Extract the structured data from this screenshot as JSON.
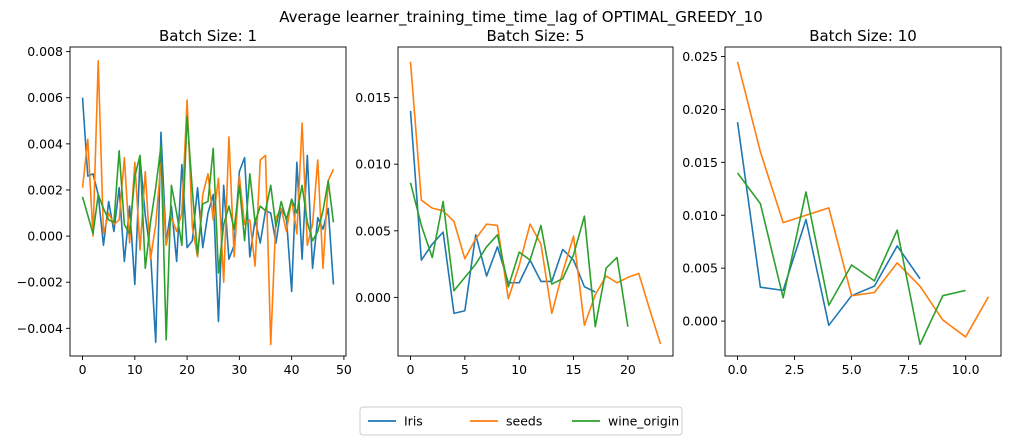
{
  "title": "Average learner_training_time_time_lag of OPTIMAL_GREEDY_10",
  "legend": {
    "placement": "bottom-center",
    "entries": [
      "Iris",
      "seeds",
      "wine_origin"
    ]
  },
  "colors": {
    "Iris": "#1f77b4",
    "seeds": "#ff7f0e",
    "wine_origin": "#2ca02c"
  },
  "chart_data": [
    {
      "type": "line",
      "title": "Batch Size: 1",
      "xlabel": "",
      "ylabel": "",
      "xlim": [
        -2.4,
        50.4
      ],
      "ylim": [
        -0.0052,
        0.0082
      ],
      "xticks": [
        0,
        10,
        20,
        30,
        40,
        50
      ],
      "xtick_labels": [
        "0",
        "10",
        "20",
        "30",
        "40",
        "50"
      ],
      "yticks": [
        -0.004,
        -0.002,
        0.0,
        0.002,
        0.004,
        0.006,
        0.008
      ],
      "ytick_labels": [
        "−0.004",
        "−0.002",
        "0.000",
        "0.002",
        "0.004",
        "0.006",
        "0.008"
      ],
      "series": [
        {
          "name": "Iris",
          "x": [
            0,
            1,
            2,
            3,
            4,
            5,
            6,
            7,
            8,
            9,
            10,
            11,
            12,
            13,
            14,
            15,
            16,
            17,
            18,
            19,
            20,
            21,
            22,
            23,
            24,
            25,
            26,
            27,
            28,
            29,
            30,
            31,
            32,
            33,
            34,
            35,
            36,
            37,
            38,
            39,
            40,
            41,
            42,
            43,
            44,
            45,
            46,
            47,
            48
          ],
          "values": [
            0.006,
            0.0026,
            0.0027,
            0.0018,
            -0.0004,
            0.0015,
            0.0002,
            0.0021,
            -0.0011,
            0.0013,
            -0.0021,
            0.0034,
            0.0009,
            -0.0007,
            -0.0046,
            0.0045,
            -0.0003,
            0.0013,
            -0.0011,
            0.0031,
            -0.0005,
            -0.0002,
            0.0021,
            -0.0005,
            0.001,
            0.0018,
            -0.0037,
            0.0022,
            -0.001,
            -0.0004,
            0.0028,
            0.0034,
            -0.0009,
            0.0007,
            -0.0003,
            0.0011,
            0.001,
            -0.0003,
            0.0012,
            0.0008,
            -0.0024,
            0.0032,
            -0.001,
            0.0035,
            -0.0014,
            0.0008,
            0.0003,
            0.0012,
            -0.0021
          ]
        },
        {
          "name": "seeds",
          "x": [
            0,
            1,
            2,
            3,
            4,
            5,
            6,
            7,
            8,
            9,
            10,
            11,
            12,
            13,
            14,
            15,
            16,
            17,
            18,
            19,
            20,
            21,
            22,
            23,
            24,
            25,
            26,
            27,
            28,
            29,
            30,
            31,
            32,
            33,
            34,
            35,
            36,
            37,
            38,
            39,
            40,
            41,
            42,
            43,
            44,
            45,
            46,
            47,
            48
          ],
          "values": [
            0.0021,
            0.0042,
            0.0,
            0.0076,
            0.0001,
            0.001,
            0.0005,
            0.0007,
            0.0034,
            -0.0003,
            0.0032,
            -0.0006,
            0.0028,
            -0.001,
            0.0005,
            0.0032,
            -0.0004,
            0.0008,
            0.0002,
            0.001,
            0.0059,
            0.0004,
            -0.0009,
            0.0018,
            0.0027,
            0.0007,
            0.0025,
            -0.002,
            0.0043,
            -0.0009,
            0.0026,
            0.0005,
            0.0007,
            -0.0013,
            0.0033,
            0.0035,
            -0.0047,
            0.0008,
            0.0012,
            0.0002,
            0.0016,
            0.0001,
            0.0049,
            -0.0004,
            0.0005,
            0.0033,
            -0.0014,
            0.0024,
            0.0029
          ]
        },
        {
          "name": "wine_origin",
          "x": [
            0,
            1,
            2,
            3,
            4,
            5,
            6,
            7,
            8,
            9,
            10,
            11,
            12,
            13,
            14,
            15,
            16,
            17,
            18,
            19,
            20,
            21,
            22,
            23,
            24,
            25,
            26,
            27,
            28,
            29,
            30,
            31,
            32,
            33,
            34,
            35,
            36,
            37,
            38,
            39,
            40,
            41,
            42,
            43,
            44,
            45,
            46,
            47,
            48
          ],
          "values": [
            0.0017,
            0.0009,
            0.0001,
            0.0018,
            0.0012,
            0.0007,
            0.0006,
            0.0037,
            0.0005,
            0.0001,
            0.0026,
            0.0035,
            -0.0014,
            0.0006,
            0.0021,
            0.0039,
            -0.0045,
            0.0022,
            0.001,
            -0.0004,
            0.0052,
            0.002,
            -0.0008,
            0.0014,
            0.0015,
            0.0038,
            -0.0016,
            0.0005,
            0.0013,
            0.0003,
            0.0022,
            -0.0002,
            0.0027,
            0.0006,
            0.0013,
            0.0011,
            0.0022,
            0.0004,
            0.0015,
            0.0007,
            0.0016,
            0.001,
            0.0022,
            0.0006,
            -0.0002,
            0.0002,
            0.0011,
            0.0024,
            0.0006
          ]
        }
      ]
    },
    {
      "type": "line",
      "title": "Batch Size: 5",
      "xlabel": "",
      "ylabel": "",
      "xlim": [
        -1.15,
        24.15
      ],
      "ylim": [
        -0.0044,
        0.0188
      ],
      "xticks": [
        0,
        5,
        10,
        15,
        20
      ],
      "xtick_labels": [
        "0",
        "5",
        "10",
        "15",
        "20"
      ],
      "yticks": [
        0.0,
        0.005,
        0.01,
        0.015
      ],
      "ytick_labels": [
        "0.000",
        "0.005",
        "0.010",
        "0.015"
      ],
      "series": [
        {
          "name": "Iris",
          "x": [
            0,
            1,
            2,
            3,
            4,
            5,
            6,
            7,
            8,
            9,
            10,
            11,
            12,
            13,
            14,
            15,
            16,
            17
          ],
          "values": [
            0.014,
            0.0028,
            0.004,
            0.0049,
            -0.0012,
            -0.001,
            0.0047,
            0.0016,
            0.0038,
            0.0011,
            0.0011,
            0.0028,
            0.0012,
            0.0012,
            0.0036,
            0.0028,
            0.0008,
            0.0004
          ]
        },
        {
          "name": "seeds",
          "x": [
            0,
            1,
            2,
            3,
            4,
            5,
            6,
            7,
            8,
            9,
            10,
            11,
            12,
            13,
            14,
            15,
            16,
            17,
            18,
            19,
            20,
            21,
            22,
            23
          ],
          "values": [
            0.0177,
            0.0073,
            0.0067,
            0.0065,
            0.0057,
            0.0029,
            0.0044,
            0.0055,
            0.0054,
            -0.0001,
            0.0024,
            0.0055,
            0.004,
            -0.0012,
            0.0019,
            0.0046,
            -0.0021,
            0.0002,
            0.0016,
            0.0011,
            0.0015,
            0.0018,
            -0.0009,
            -0.0035
          ]
        },
        {
          "name": "wine_origin",
          "x": [
            0,
            1,
            2,
            3,
            4,
            5,
            6,
            7,
            8,
            9,
            10,
            11,
            12,
            13,
            14,
            15,
            16,
            17,
            18,
            19,
            20
          ],
          "values": [
            0.0086,
            0.0054,
            0.003,
            0.0072,
            0.0005,
            0.0015,
            0.0025,
            0.0038,
            0.0047,
            0.0008,
            0.0034,
            0.0028,
            0.0054,
            0.001,
            0.0014,
            0.0032,
            0.0061,
            -0.0022,
            0.0022,
            0.003,
            -0.0022
          ]
        }
      ]
    },
    {
      "type": "line",
      "title": "Batch Size: 10",
      "xlabel": "",
      "ylabel": "",
      "xlim": [
        -0.55,
        11.55
      ],
      "ylim": [
        -0.0033,
        0.0259
      ],
      "xticks": [
        0,
        2.5,
        5,
        7.5,
        10
      ],
      "xtick_labels": [
        "0.0",
        "2.5",
        "5.0",
        "7.5",
        "10.0"
      ],
      "yticks": [
        0.0,
        0.005,
        0.01,
        0.015,
        0.02,
        0.025
      ],
      "ytick_labels": [
        "0.000",
        "0.005",
        "0.010",
        "0.015",
        "0.020",
        "0.025"
      ],
      "series": [
        {
          "name": "Iris",
          "x": [
            0,
            1,
            2,
            3,
            4,
            5,
            6,
            7,
            8
          ],
          "values": [
            0.0188,
            0.0032,
            0.0029,
            0.0096,
            -0.0004,
            0.0024,
            0.0033,
            0.0071,
            0.004
          ]
        },
        {
          "name": "seeds",
          "x": [
            0,
            1,
            2,
            3,
            4,
            5,
            6,
            7,
            8,
            9,
            10,
            11
          ],
          "values": [
            0.0245,
            0.016,
            0.0093,
            0.01,
            0.0107,
            0.0024,
            0.0027,
            0.0055,
            0.0033,
            0.0001,
            -0.0015,
            0.0023
          ]
        },
        {
          "name": "wine_origin",
          "x": [
            0,
            1,
            2,
            3,
            4,
            5,
            6,
            7,
            8,
            9,
            10
          ],
          "values": [
            0.014,
            0.0111,
            0.0022,
            0.0122,
            0.0015,
            0.0053,
            0.0038,
            0.0086,
            -0.0022,
            0.0024,
            0.0029
          ]
        }
      ]
    }
  ]
}
